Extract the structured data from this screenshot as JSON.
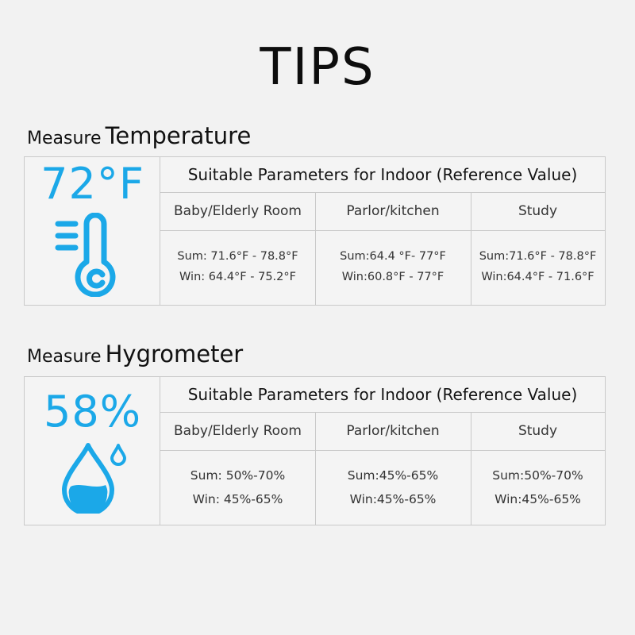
{
  "title": "TIPS",
  "temperature": {
    "heading_prefix": "Measure",
    "heading_main": "Temperature",
    "reading": "72°F",
    "icon": "thermometer-icon",
    "table_title": "Suitable Parameters for Indoor (Reference Value)",
    "columns": [
      "Baby/Elderly Room",
      "Parlor/kitchen",
      "Study"
    ],
    "rows": [
      {
        "sum": "Sum: 71.6°F - 78.8°F",
        "win": "Win: 64.4°F - 75.2°F"
      },
      {
        "sum": "Sum:64.4 °F- 77°F",
        "win": "Win:60.8°F - 77°F"
      },
      {
        "sum": "Sum:71.6°F - 78.8°F",
        "win": "Win:64.4°F - 71.6°F"
      }
    ]
  },
  "humidity": {
    "heading_prefix": "Measure",
    "heading_main": "Hygrometer",
    "reading": "58%",
    "icon": "water-drop-icon",
    "table_title": "Suitable Parameters for Indoor (Reference Value)",
    "columns": [
      "Baby/Elderly Room",
      "Parlor/kitchen",
      "Study"
    ],
    "rows": [
      {
        "sum": "Sum: 50%-70%",
        "win": "Win: 45%-65%"
      },
      {
        "sum": "Sum:45%-65%",
        "win": "Win:45%-65%"
      },
      {
        "sum": "Sum:50%-70%",
        "win": "Win:45%-65%"
      }
    ]
  },
  "colors": {
    "accent": "#1ba8e8",
    "background": "#f2f2f2",
    "border": "#c9c9c9"
  }
}
